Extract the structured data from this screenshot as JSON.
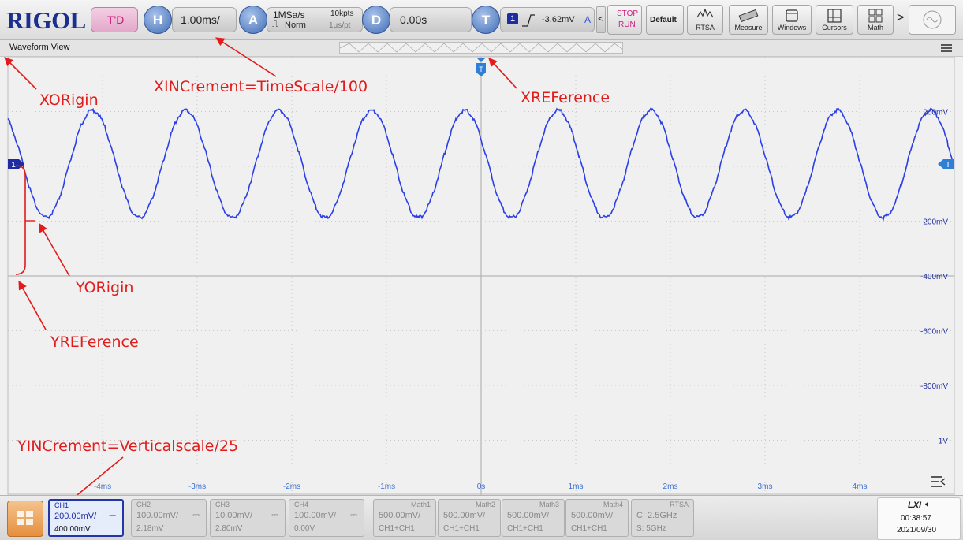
{
  "brand": "RIGOL",
  "toolbar": {
    "trigger_delay_mode": "T'D",
    "horizontal_icon": "H",
    "timebase": "1.00ms/",
    "acquire_icon": "A",
    "sample_rate": "1MSa/s",
    "acquire_mode": "Norm",
    "memory_depth": "10kpts",
    "time_per_point": "1μs/pt",
    "delay_icon": "D",
    "delay_value": "0.00s",
    "trigger_icon": "T",
    "trigger_source": "1",
    "trigger_level": "-3.62mV",
    "trigger_sweep": "A",
    "stop_label": "STOP",
    "run_label": "RUN",
    "default_label": "Default",
    "rtsa_label": "RTSA",
    "measure_label": "Measure",
    "windows_label": "Windows",
    "cursors_label": "Cursors",
    "math_label": "Math",
    "more_arrow": ">",
    "prev_arrow": "<"
  },
  "waveform": {
    "title": "Waveform View",
    "trigger_marker": "T",
    "ch_marker": "1",
    "right_marker": "T",
    "volt_labels": [
      "200mV",
      "-200mV",
      "-400mV",
      "-600mV",
      "-800mV",
      "-1V"
    ],
    "time_labels": [
      "-4ms",
      "-3ms",
      "-2ms",
      "-1ms",
      "0s",
      "1ms",
      "2ms",
      "3ms",
      "4ms"
    ]
  },
  "channels": [
    {
      "name": "CH1",
      "scale": "200.00mV/",
      "offset": "400.00mV",
      "coupling": "⎓"
    },
    {
      "name": "CH2",
      "scale": "100.00mV/",
      "offset": "2.18mV",
      "coupling": "⎓"
    },
    {
      "name": "CH3",
      "scale": "10.00mV/",
      "offset": "2.80mV",
      "coupling": "⎓"
    },
    {
      "name": "CH4",
      "scale": "100.00mV/",
      "offset": "0.00V",
      "coupling": "⎓"
    }
  ],
  "maths": [
    {
      "name": "Math1",
      "scale": "500.00mV/",
      "source": "CH1+CH1"
    },
    {
      "name": "Math2",
      "scale": "500.00mV/",
      "source": "CH1+CH1"
    },
    {
      "name": "Math3",
      "scale": "500.00mV/",
      "source": "CH1+CH1"
    },
    {
      "name": "Math4",
      "scale": "500.00mV/",
      "source": "CH1+CH1"
    }
  ],
  "rtsa": {
    "name": "RTSA",
    "center": "C: 2.5GHz",
    "span": "S: 5GHz"
  },
  "status": {
    "lxi": "LXI",
    "time": "00:38:57",
    "date": "2021/09/30"
  },
  "annotations": {
    "xorigin": "XORigin",
    "xincrement": "XINCrement=TimeScale/100",
    "xreference": "XREFerence",
    "yorigin": "YORigin",
    "yreference": "YREFerence",
    "yincrement": "YINCrement=Verticalscale/25"
  },
  "colors": {
    "waveform": "#2b3fe6",
    "annotation": "#e21b1b",
    "marker": "#2f7fd6",
    "brand": "#1b2f8f"
  }
}
